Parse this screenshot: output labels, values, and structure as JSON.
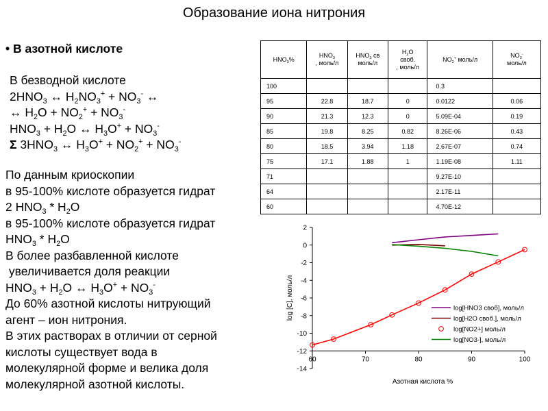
{
  "title": "Образование иона нитрония",
  "bullet": "• В азотной кислоте",
  "equations": {
    "intro": "В безводной кислоте",
    "l1": {
      "a": "2HNO",
      "a_sub": "3",
      "b": " ↔ H",
      "b_sub": "2",
      "c": "NO",
      "c_sub": "3",
      "c_sup": "+",
      "d": " + NO",
      "d_sub": "3",
      "d_sup": "-",
      "e": " ↔"
    },
    "l2": {
      "a": "↔ H",
      "a_sub": "2",
      "b": "O + NO",
      "b_sub": "2",
      "b_sup": "+",
      "c": " + NO",
      "c_sub": "3",
      "c_sup": "-"
    },
    "l3": {
      "a": "HNO",
      "a_sub": "3",
      "b": " + H",
      "b_sub": "2",
      "c": "O ↔ H",
      "c_sub": "3",
      "d": "O",
      "d_sup": "+",
      "e": " + NO",
      "e_sub": "3",
      "e_sup": "-"
    },
    "l4": {
      "sigma": "Σ",
      "a": " 3HNO",
      "a_sub": "3",
      "b": " ↔ H",
      "b_sub": "3",
      "c": "O",
      "c_sup": "+",
      "d": " + NO",
      "d_sub": "2",
      "d_sup": "+",
      "e": " + NO",
      "e_sub": "3",
      "e_sup": "-"
    }
  },
  "prose": {
    "p1": "По данным криоскопии",
    "p2": "в 95-100% кислоте образуется гидрат",
    "p3": {
      "a": "2 HNO",
      "a_sub": "3",
      "b": " * H",
      "b_sub": "2",
      "c": "O"
    },
    "p4": "в 95-100% кислоте образуется гидрат",
    "p5": {
      "a": "HNO",
      "a_sub": "3",
      "b": " * H",
      "b_sub": "2",
      "c": "O"
    },
    "p6": "В более разбавленной кислоте",
    "p7": " увеличивается доля реакции",
    "p8": {
      "a": "HNO",
      "a_sub": "3",
      "b": " + H",
      "b_sub": "2",
      "c": "O ↔ H",
      "c_sub": "3",
      "d": "O",
      "d_sup": "+",
      "e": " + NO",
      "e_sub": "3",
      "e_sup": "-"
    },
    "p9": "До 60% азотной кислоты нитрующий",
    "p10": "агент – ион нитрония.",
    "p11": "В этих растворах в отличии от серной",
    "p12": "кислоты существует вода в",
    "p13": "молекулярной форме и велика доля",
    "p14": "молекулярной азотной кислоты."
  },
  "table": {
    "headers": {
      "h0": {
        "a": "HNO",
        "a_sub": "3",
        "b": "%"
      },
      "h1": {
        "a": "HNO",
        "a_sub": "3",
        "b": ", моль/л"
      },
      "h2": {
        "a": "HNO",
        "a_sub": "3",
        "b": " св",
        "c": "моль/л"
      },
      "h3": {
        "a": "H",
        "a_sub": "2",
        "b": "O",
        "c": "своб.",
        "d": ", моль/л"
      },
      "h4": {
        "a": "NO",
        "a_sub": "2",
        "a_sup": "+",
        "b": " моль/л"
      },
      "h5": {
        "a": "NO",
        "a_sub": "3",
        "a_sup": "-",
        "b": "моль/л"
      }
    },
    "rows": [
      [
        "100",
        "",
        "",
        "",
        "0.3",
        ""
      ],
      [
        "95",
        "22.8",
        "18.7",
        "0",
        "0.0122",
        "0.06"
      ],
      [
        "90",
        "21.3",
        "12.3",
        "0",
        "5.09E-04",
        "0.19"
      ],
      [
        "85",
        "19.8",
        "8.25",
        "0.82",
        "8.26E-06",
        "0.43"
      ],
      [
        "80",
        "18.5",
        "3.94",
        "1.18",
        "2.67E-07",
        "0.74"
      ],
      [
        "75",
        "17.1",
        "1.88",
        "1",
        "1.19E-08",
        "1.11"
      ],
      [
        "71",
        "",
        "",
        "",
        "9.27E-10",
        ""
      ],
      [
        "64",
        "",
        "",
        "",
        "2.17E-11",
        ""
      ],
      [
        "60",
        "",
        "",
        "",
        "4.70E-12",
        ""
      ]
    ]
  },
  "chart_data": {
    "type": "line",
    "xlabel": "Азотная кислота %",
    "ylabel": "log [C], моль/л",
    "xlim": [
      60,
      100
    ],
    "ylim": [
      -14,
      2
    ],
    "xticks": [
      "60",
      "70",
      "80",
      "90",
      "100"
    ],
    "yticks": [
      "2",
      "0",
      "-2",
      "-4",
      "-6",
      "-8",
      "-10",
      "-12",
      "-14"
    ],
    "legend_position": "bottom-right",
    "series": [
      {
        "name": "log[HNO3 своб], моль/л",
        "style": "line",
        "color": "#800080",
        "x": [
          75,
          80,
          85,
          90,
          95
        ],
        "y": [
          0.27,
          0.6,
          0.92,
          1.09,
          1.27
        ]
      },
      {
        "name": "log[H2O своб.], моль/л",
        "style": "line",
        "color": "#800000",
        "x": [
          75,
          80,
          85
        ],
        "y": [
          0.0,
          0.07,
          -0.09
        ]
      },
      {
        "name": "log[NO2+] моль/л",
        "style": "marker",
        "color": "#ff0000",
        "x": [
          60,
          64,
          71,
          75,
          80,
          85,
          90,
          95,
          100
        ],
        "y": [
          -11.33,
          -10.66,
          -9.03,
          -7.92,
          -6.57,
          -5.08,
          -3.29,
          -1.91,
          -0.52
        ]
      },
      {
        "name": "log[NO3-], моль/л",
        "style": "line",
        "color": "#008000",
        "x": [
          75,
          80,
          85,
          90,
          95
        ],
        "y": [
          0.05,
          -0.13,
          -0.37,
          -0.72,
          -1.22
        ]
      },
      {
        "name": "",
        "style": "line",
        "color": "#ff0000",
        "x": [
          60,
          64,
          71,
          75,
          80,
          85,
          90,
          95,
          100
        ],
        "y": [
          -11.33,
          -10.66,
          -9.03,
          -7.92,
          -6.57,
          -5.08,
          -3.29,
          -1.91,
          -0.52
        ]
      }
    ]
  }
}
